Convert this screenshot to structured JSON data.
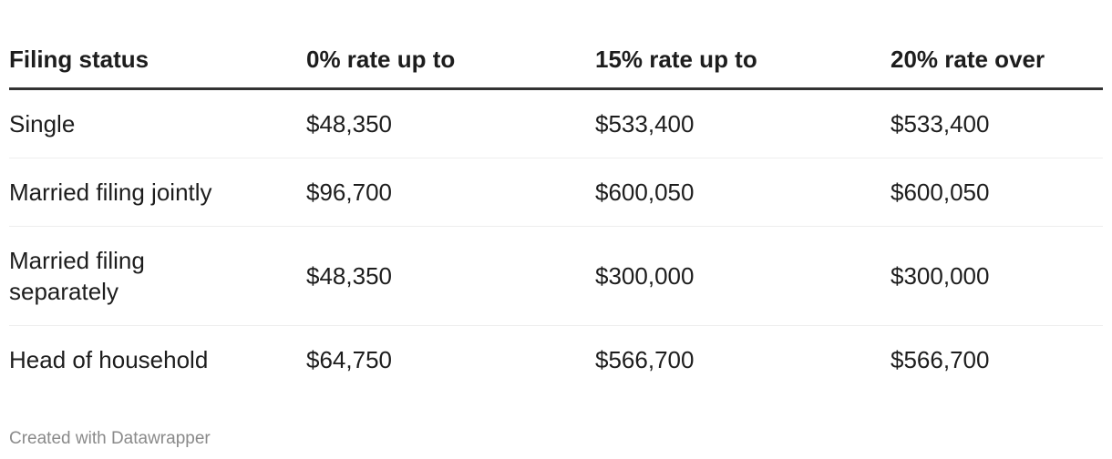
{
  "chart_data": {
    "type": "table",
    "columns": [
      "Filing status",
      "0% rate up to",
      "15% rate up to",
      "20% rate over"
    ],
    "rows": [
      [
        "Single",
        "$48,350",
        "$533,400",
        "$533,400"
      ],
      [
        "Married filing jointly",
        "$96,700",
        "$600,050",
        "$600,050"
      ],
      [
        "Married filing separately",
        "$48,350",
        "$300,000",
        "$300,000"
      ],
      [
        "Head of household",
        "$64,750",
        "$566,700",
        "$566,700"
      ]
    ],
    "title": "",
    "legend_position": "none",
    "grid": "horizontal-rules"
  },
  "footer": {
    "attribution": "Created with Datawrapper"
  },
  "colors": {
    "text": "#1d1d1d",
    "header_rule": "#333333",
    "row_separator": "#eeeeee",
    "attribution_text": "#8a8a8a",
    "background": "#ffffff"
  }
}
